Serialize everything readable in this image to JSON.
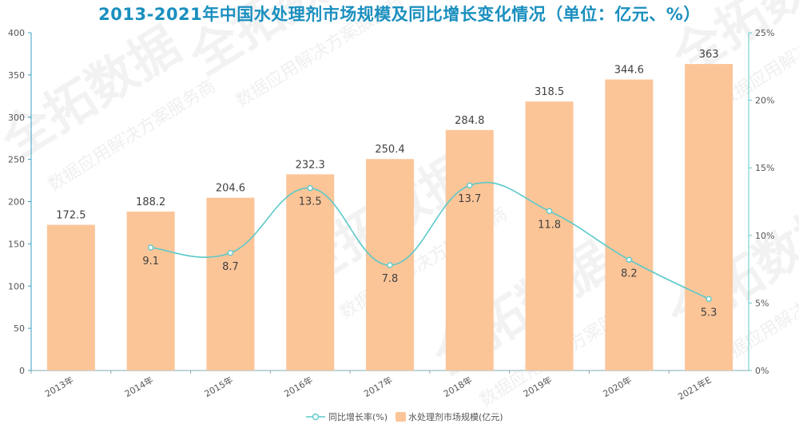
{
  "chart_data": {
    "type": "bar",
    "title": "2013-2021年中国水处理剂市场规模及同比增长变化情况（单位：亿元、%）",
    "categories": [
      "2013年",
      "2014年",
      "2015年",
      "2016年",
      "2017年",
      "2018年",
      "2019年",
      "2020年",
      "2021年E"
    ],
    "series": [
      {
        "name": "水处理剂市场规模(亿元)",
        "type": "bar",
        "axis": "left",
        "color": "#fcc598",
        "values": [
          172.5,
          188.2,
          204.6,
          232.3,
          250.4,
          284.8,
          318.5,
          344.6,
          363
        ],
        "labels": [
          "172.5",
          "188.2",
          "204.6",
          "232.3",
          "250.4",
          "284.8",
          "318.5",
          "344.6",
          "363"
        ]
      },
      {
        "name": "同比增长率(%)",
        "type": "line",
        "axis": "right",
        "color": "#5cc9c9",
        "values": [
          null,
          9.1,
          8.7,
          13.5,
          7.8,
          13.7,
          11.8,
          8.2,
          5.3
        ],
        "labels": [
          "",
          "9.1",
          "8.7",
          "13.5",
          "7.8",
          "13.7",
          "11.8",
          "8.2",
          "5.3"
        ]
      }
    ],
    "y_left": {
      "min": 0,
      "max": 400,
      "ticks": [
        0,
        50,
        100,
        150,
        200,
        250,
        300,
        350,
        400
      ],
      "tick_labels": [
        "0",
        "50",
        "100",
        "150",
        "200",
        "250",
        "300",
        "350",
        "400"
      ]
    },
    "y_right": {
      "min": 0,
      "max": 25,
      "ticks": [
        0,
        5,
        10,
        15,
        20,
        25
      ],
      "tick_labels": [
        "0%",
        "5%",
        "10%",
        "15%",
        "20%",
        "25%"
      ]
    },
    "grid": false,
    "legend_position": "bottom"
  },
  "watermark": {
    "main": "全拓数据",
    "sub": "数据应用解决方案服务商"
  },
  "colors": {
    "title": "#1a8fbf",
    "axis_left": "#3a9fc0",
    "axis_right": "#5cc9c9"
  }
}
